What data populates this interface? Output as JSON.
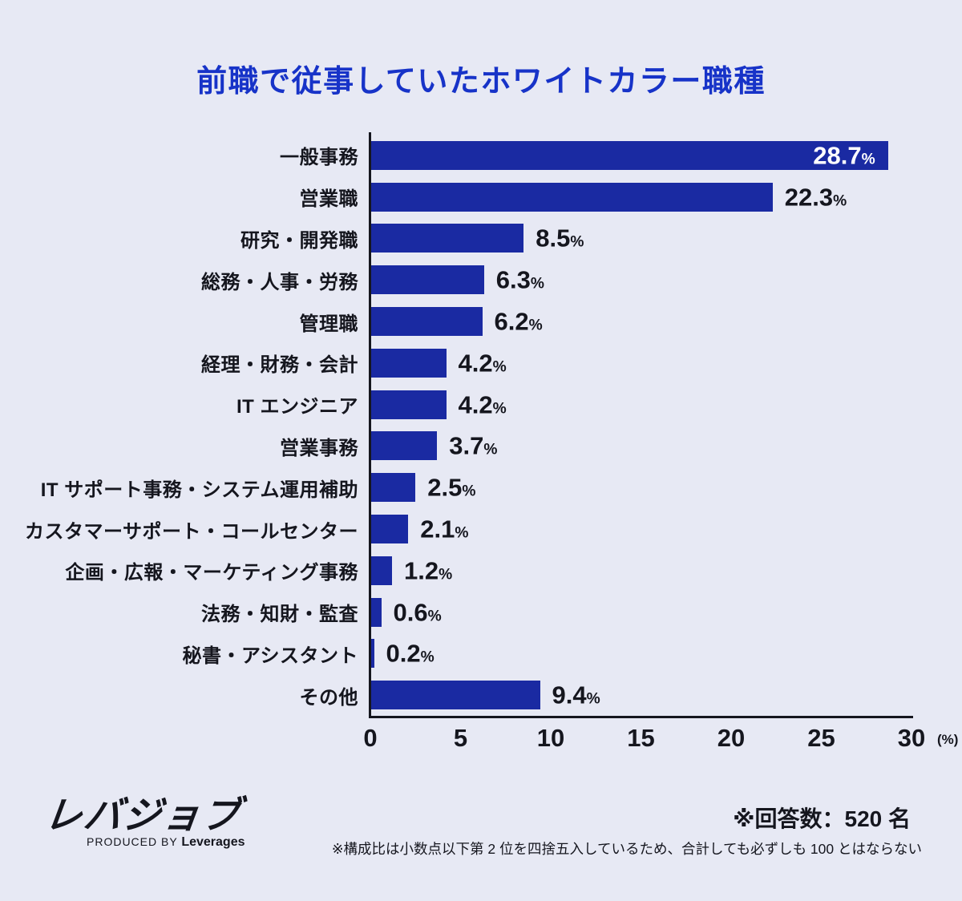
{
  "title": "前職で従事していたホワイトカラー職種",
  "chart_data": {
    "type": "bar",
    "orientation": "horizontal",
    "title": "前職で従事していたホワイトカラー職種",
    "categories": [
      "一般事務",
      "営業職",
      "研究・開発職",
      "総務・人事・労務",
      "管理職",
      "経理・財務・会計",
      "IT エンジニア",
      "営業事務",
      "IT サポート事務・システム運用補助",
      "カスタマーサポート・コールセンター",
      "企画・広報・マーケティング事務",
      "法務・知財・監査",
      "秘書・アシスタント",
      "その他"
    ],
    "values": [
      28.7,
      22.3,
      8.5,
      6.3,
      6.2,
      4.2,
      4.2,
      3.7,
      2.5,
      2.1,
      1.2,
      0.6,
      0.2,
      9.4
    ],
    "value_suffix": "%",
    "xlabel": "",
    "ylabel": "",
    "xlim": [
      0,
      30
    ],
    "xticks": [
      0,
      5,
      10,
      15,
      20,
      25,
      30
    ],
    "x_unit_label": "(%)",
    "grid": false,
    "legend": false,
    "value_labels_shown": true
  },
  "footer": {
    "logo_text": "レバジョブ",
    "produced_by_prefix": "PRODUCED BY",
    "produced_by_brand": "Leverages",
    "respondents_note": "※回答数：520 名",
    "rounding_note": "※構成比は小数点以下第 2 位を四捨五入しているため、合計しても必ずしも 100 とはならない"
  },
  "colors": {
    "background": "#e7e9f4",
    "title": "#1733c8",
    "bar": "#1a2aa2",
    "text": "#15161e",
    "value_inside": "#ffffff"
  }
}
